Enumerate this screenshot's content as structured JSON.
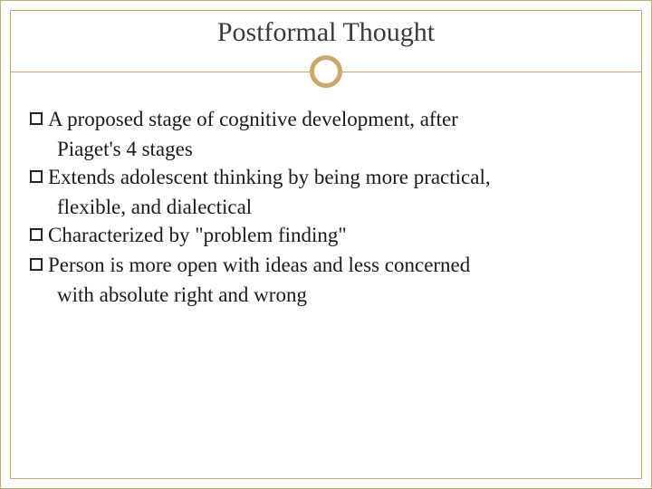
{
  "slide": {
    "title": "Postformal Thought",
    "title_fontsize": 30,
    "title_color": "#3a3a3a",
    "border_color": "#c9a86a",
    "circle_border_color": "#c9a86a",
    "circle_border_width": 5,
    "background_color": "#ffffff",
    "body_fontsize": 23,
    "body_color": "#1a1a1a",
    "bullets": [
      {
        "line1": "A proposed stage of cognitive development, after",
        "line2": "Piaget's 4 stages"
      },
      {
        "line1": "Extends adolescent thinking by being more practical,",
        "line2": "flexible, and dialectical"
      },
      {
        "line1": "Characterized by \"problem finding\"",
        "line2": ""
      },
      {
        "line1": "Person is more open with ideas and less concerned",
        "line2": "with absolute right and wrong"
      }
    ]
  }
}
